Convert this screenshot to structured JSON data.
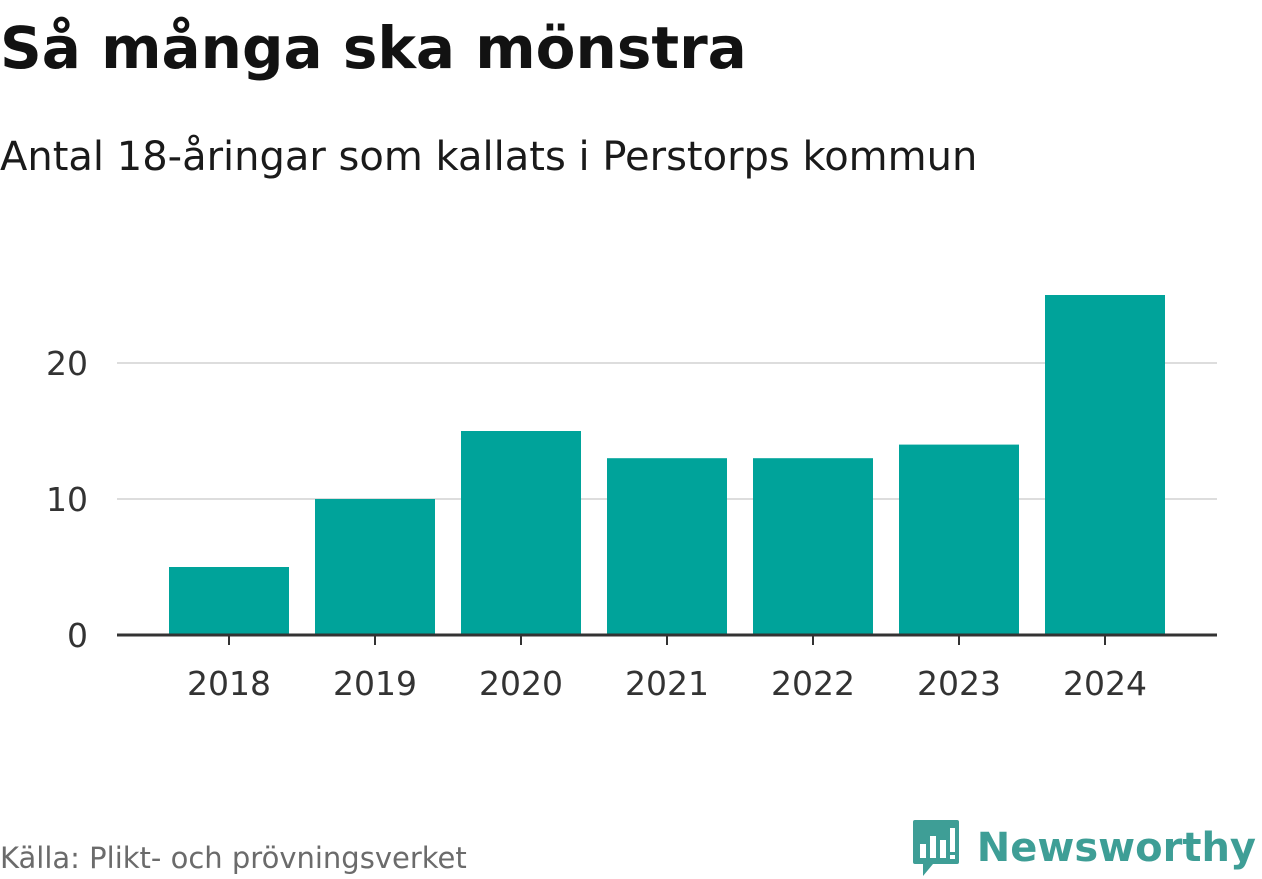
{
  "header": {
    "title": "Så många ska mönstra",
    "subtitle": "Antal 18-åringar som kallats i Perstorps kommun"
  },
  "footer": {
    "source": "Källa: Plikt- och prövningsverket",
    "brand": "Newsworthy"
  },
  "colors": {
    "bar": "#00a39a",
    "grid": "#dddddd",
    "axis": "#333333",
    "brand": "#3e9e96"
  },
  "icons": {
    "brand_logo": "newsworthy-logo-icon"
  },
  "chart_data": {
    "type": "bar",
    "categories": [
      "2018",
      "2019",
      "2020",
      "2021",
      "2022",
      "2023",
      "2024"
    ],
    "values": [
      5,
      10,
      15,
      13,
      13,
      14,
      25
    ],
    "y_ticks": [
      0,
      10,
      20
    ],
    "ylim": [
      0,
      25
    ],
    "grid": true,
    "title": "Så många ska mönstra",
    "subtitle": "Antal 18-åringar som kallats i Perstorps kommun",
    "xlabel": "",
    "ylabel": ""
  }
}
